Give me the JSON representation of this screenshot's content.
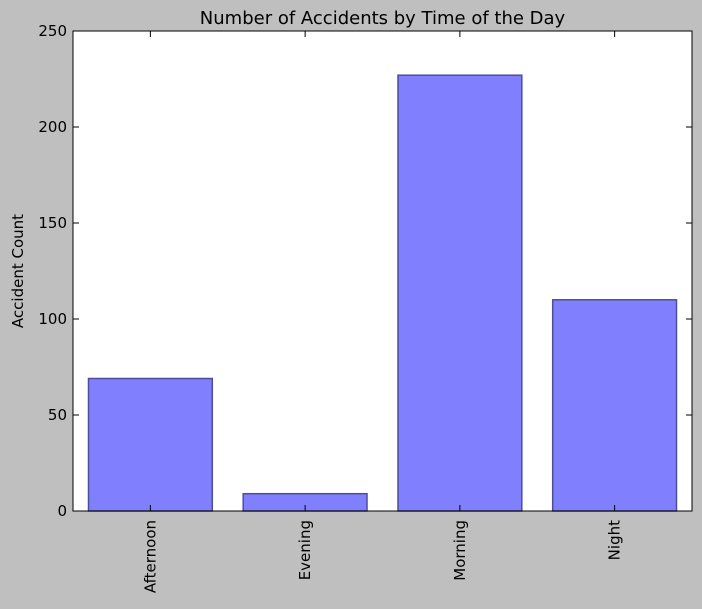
{
  "chart_data": {
    "type": "bar",
    "title": "Number of Accidents by Time of the Day",
    "xlabel": "",
    "ylabel": "Accident Count",
    "categories": [
      "Afternoon",
      "Evening",
      "Morning",
      "Night"
    ],
    "values": [
      69,
      9,
      227,
      110
    ],
    "ylim": [
      0,
      250
    ],
    "yticks": [
      "0",
      "50",
      "100",
      "150",
      "200",
      "250"
    ],
    "grid": false,
    "bar_color": "#8080ff",
    "bar_edge_color": "#4d4d99",
    "background_color": "#bfbfbf",
    "plot_background_color": "#ffffff"
  }
}
